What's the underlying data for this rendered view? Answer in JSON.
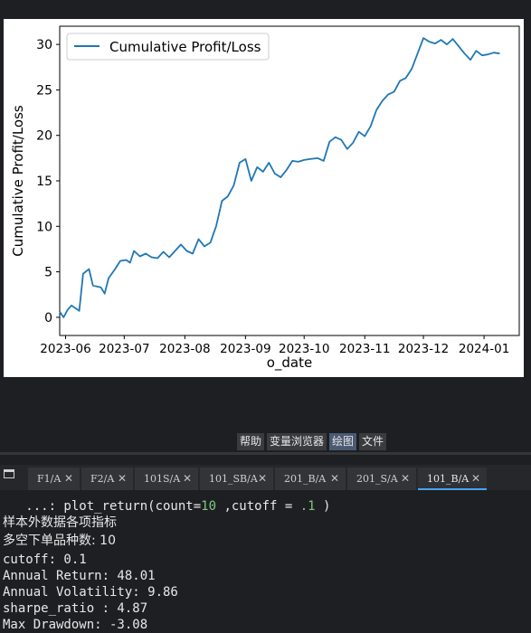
{
  "chart_data": {
    "type": "line",
    "xlabel": "o_date",
    "ylabel": "Cumulative Profit/Loss",
    "legend": "top-left",
    "ylim": [
      -2,
      32
    ],
    "yticks": [
      0,
      5,
      10,
      15,
      20,
      25,
      30
    ],
    "xlim": [
      "2023-05-29",
      "2024-01-19"
    ],
    "xticks": [
      {
        "date": "2023-06-01",
        "label": "2023-06"
      },
      {
        "date": "2023-07-01",
        "label": "2023-07"
      },
      {
        "date": "2023-08-01",
        "label": "2023-08"
      },
      {
        "date": "2023-09-01",
        "label": "2023-09"
      },
      {
        "date": "2023-10-01",
        "label": "2023-10"
      },
      {
        "date": "2023-11-01",
        "label": "2023-11"
      },
      {
        "date": "2023-12-01",
        "label": "2023-12"
      },
      {
        "date": "2024-01-01",
        "label": "2024-01"
      }
    ],
    "series": [
      {
        "name": "Cumulative Profit/Loss",
        "color": "#1f77b4",
        "points": [
          [
            "2023-05-29",
            0.6
          ],
          [
            "2023-05-31",
            0.0
          ],
          [
            "2023-06-02",
            0.8
          ],
          [
            "2023-06-04",
            1.3
          ],
          [
            "2023-06-06",
            1.0
          ],
          [
            "2023-06-08",
            0.7
          ],
          [
            "2023-06-10",
            4.8
          ],
          [
            "2023-06-13",
            5.3
          ],
          [
            "2023-06-15",
            3.5
          ],
          [
            "2023-06-19",
            3.3
          ],
          [
            "2023-06-21",
            2.6
          ],
          [
            "2023-06-23",
            4.3
          ],
          [
            "2023-06-26",
            5.2
          ],
          [
            "2023-06-29",
            6.2
          ],
          [
            "2023-07-02",
            6.3
          ],
          [
            "2023-07-04",
            6.0
          ],
          [
            "2023-07-06",
            7.3
          ],
          [
            "2023-07-09",
            6.7
          ],
          [
            "2023-07-12",
            7.0
          ],
          [
            "2023-07-15",
            6.6
          ],
          [
            "2023-07-18",
            6.5
          ],
          [
            "2023-07-21",
            7.2
          ],
          [
            "2023-07-24",
            6.6
          ],
          [
            "2023-07-27",
            7.3
          ],
          [
            "2023-07-30",
            8.0
          ],
          [
            "2023-08-02",
            7.3
          ],
          [
            "2023-08-05",
            7.0
          ],
          [
            "2023-08-08",
            8.6
          ],
          [
            "2023-08-11",
            7.8
          ],
          [
            "2023-08-14",
            8.2
          ],
          [
            "2023-08-17",
            10.0
          ],
          [
            "2023-08-20",
            12.8
          ],
          [
            "2023-08-23",
            13.3
          ],
          [
            "2023-08-26",
            14.5
          ],
          [
            "2023-08-29",
            17.0
          ],
          [
            "2023-09-01",
            17.4
          ],
          [
            "2023-09-04",
            15.0
          ],
          [
            "2023-09-07",
            16.5
          ],
          [
            "2023-09-10",
            16.0
          ],
          [
            "2023-09-13",
            17.0
          ],
          [
            "2023-09-16",
            15.8
          ],
          [
            "2023-09-19",
            15.4
          ],
          [
            "2023-09-22",
            16.2
          ],
          [
            "2023-09-25",
            17.2
          ],
          [
            "2023-09-28",
            17.1
          ],
          [
            "2023-10-01",
            17.3
          ],
          [
            "2023-10-04",
            17.4
          ],
          [
            "2023-10-08",
            17.5
          ],
          [
            "2023-10-11",
            17.2
          ],
          [
            "2023-10-14",
            19.3
          ],
          [
            "2023-10-17",
            19.8
          ],
          [
            "2023-10-20",
            19.5
          ],
          [
            "2023-10-23",
            18.5
          ],
          [
            "2023-10-26",
            19.2
          ],
          [
            "2023-10-29",
            20.4
          ],
          [
            "2023-11-01",
            19.9
          ],
          [
            "2023-11-04",
            21.0
          ],
          [
            "2023-11-07",
            22.8
          ],
          [
            "2023-11-10",
            23.8
          ],
          [
            "2023-11-13",
            24.5
          ],
          [
            "2023-11-16",
            24.8
          ],
          [
            "2023-11-19",
            26.0
          ],
          [
            "2023-11-22",
            26.3
          ],
          [
            "2023-11-25",
            27.3
          ],
          [
            "2023-11-28",
            29.0
          ],
          [
            "2023-12-01",
            30.7
          ],
          [
            "2023-12-04",
            30.3
          ],
          [
            "2023-12-07",
            30.1
          ],
          [
            "2023-12-10",
            30.5
          ],
          [
            "2023-12-13",
            30.0
          ],
          [
            "2023-12-16",
            30.6
          ],
          [
            "2023-12-19",
            29.8
          ],
          [
            "2023-12-22",
            29.0
          ],
          [
            "2023-12-25",
            28.3
          ],
          [
            "2023-12-28",
            29.3
          ],
          [
            "2023-12-31",
            28.8
          ],
          [
            "2024-01-03",
            28.9
          ],
          [
            "2024-01-06",
            29.1
          ],
          [
            "2024-01-09",
            29.0
          ]
        ]
      }
    ]
  },
  "pane_tabs": [
    "帮助",
    "变量浏览器",
    "绘图",
    "文件"
  ],
  "editor_tabs": [
    "F1/A",
    "F2/A",
    "101S/A",
    "101_SB/A",
    "201_B/A",
    "201_S/A",
    "101_B/A"
  ],
  "console": {
    "command_prefix": "   ...: plot_return(count=",
    "count": "10",
    "command_mid": " ,cutoff = ",
    "cutoff": ".1",
    "command_suffix": " )",
    "line_heading": "样本外数据各项指标",
    "line_count": "多空下单品种数: 10",
    "line_cutoff": "cutoff: 0.1",
    "line_return": "Annual Return: 48.01",
    "line_vol": "Annual Volatility: 9.86",
    "line_sharpe": "sharpe_ratio : 4.87",
    "line_drawdown": "Max Drawdown: -3.08"
  }
}
